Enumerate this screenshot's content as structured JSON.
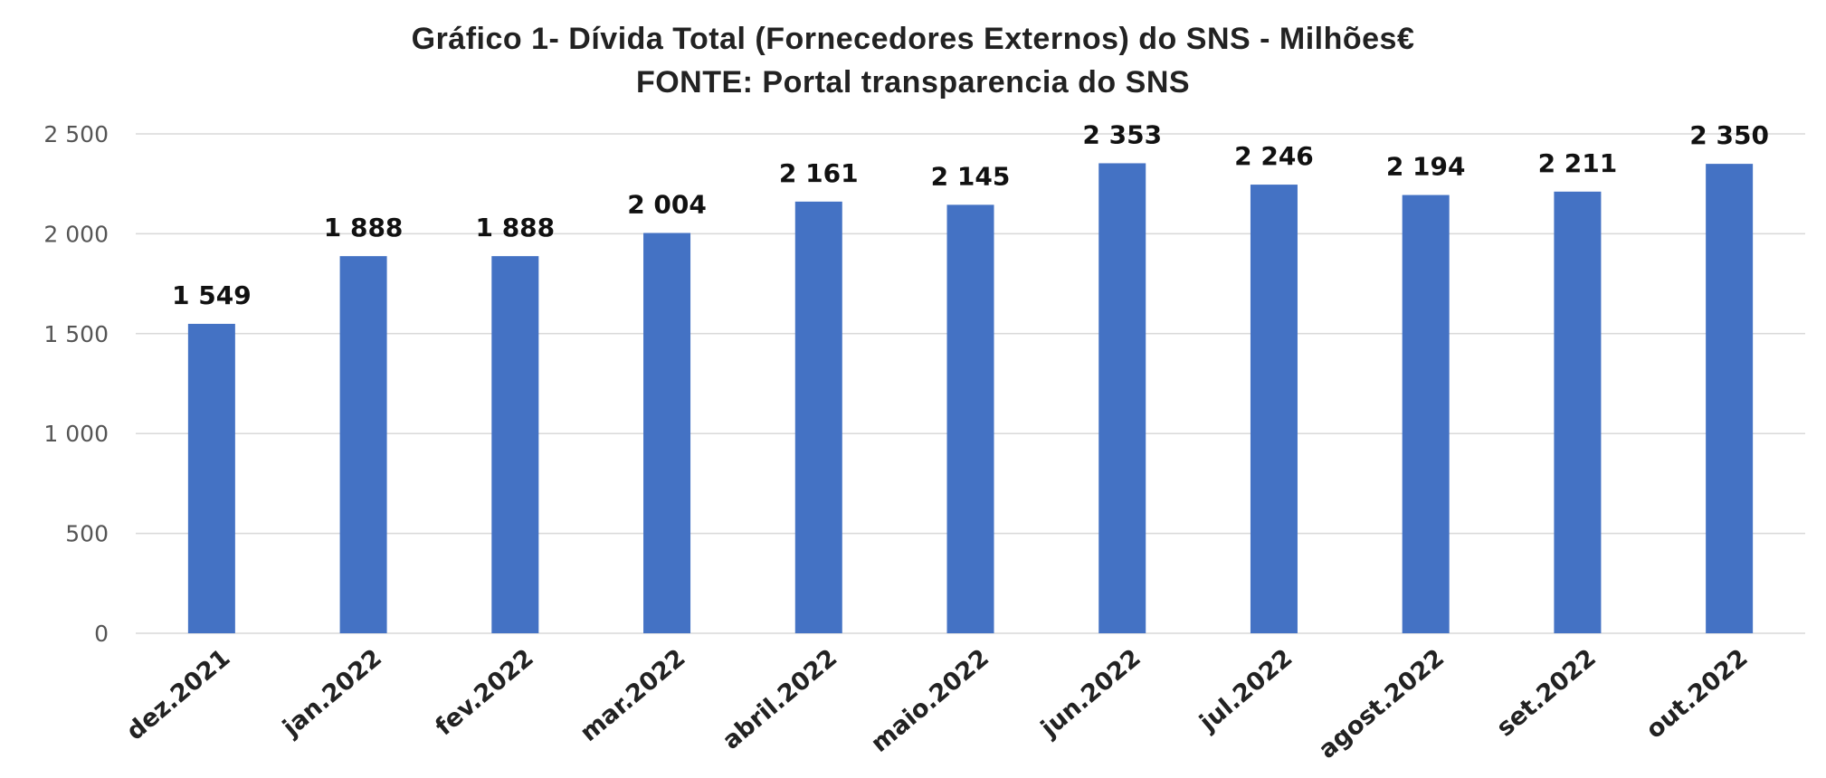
{
  "chart_data": {
    "type": "bar",
    "title": "Gráfico 1- Dívida Total (Fornecedores Externos) do SNS  - Milhões€",
    "subtitle": "FONTE:  Portal transparencia do SNS",
    "categories": [
      "dez.2021",
      "jan.2022",
      "fev.2022",
      "mar.2022",
      "abril.2022",
      "maio.2022",
      "jun.2022",
      "jul.2022",
      "agost.2022",
      "set.2022",
      "out.2022"
    ],
    "values": [
      1549,
      1888,
      1888,
      2004,
      2161,
      2145,
      2353,
      2246,
      2194,
      2211,
      2350
    ],
    "value_labels": [
      "1 549",
      "1 888",
      "1 888",
      "2 004",
      "2 161",
      "2 145",
      "2 353",
      "2 246",
      "2 194",
      "2 211",
      "2 350"
    ],
    "yticks": [
      0,
      500,
      1000,
      1500,
      2000,
      2500
    ],
    "ytick_labels": [
      "0",
      "500",
      "1 000",
      "1 500",
      "2 000",
      "2 500"
    ],
    "ylim": [
      0,
      2500
    ],
    "xlabel": "",
    "ylabel": "",
    "grid": true,
    "legend": "none",
    "bar_color": "#4472C4",
    "grid_color": "#D9D9D9"
  }
}
